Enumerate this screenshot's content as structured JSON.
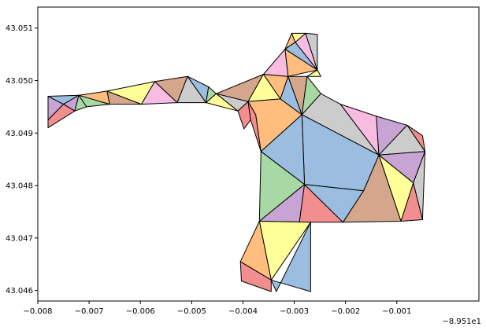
{
  "chart_data": {
    "type": "polygon-map",
    "xlim": [
      -89.518,
      -89.5094
    ],
    "ylim": [
      43.0458,
      43.0514
    ],
    "x_offset_label": "−8.951e1",
    "x_ticks": [
      {
        "value": -89.518,
        "label": "−0.008"
      },
      {
        "value": -89.517,
        "label": "−0.007"
      },
      {
        "value": -89.516,
        "label": "−0.006"
      },
      {
        "value": -89.515,
        "label": "−0.005"
      },
      {
        "value": -89.514,
        "label": "−0.004"
      },
      {
        "value": -89.513,
        "label": "−0.003"
      },
      {
        "value": -89.512,
        "label": "−0.002"
      },
      {
        "value": -89.511,
        "label": "−0.001"
      }
    ],
    "y_ticks": [
      {
        "value": 43.046,
        "label": "43.046"
      },
      {
        "value": 43.047,
        "label": "43.047"
      },
      {
        "value": 43.048,
        "label": "43.048"
      },
      {
        "value": 43.049,
        "label": "43.049"
      },
      {
        "value": 43.05,
        "label": "43.050"
      },
      {
        "value": 43.051,
        "label": "43.051"
      }
    ],
    "palette": {
      "red": "#f28e8e",
      "blue": "#9bbddf",
      "green": "#a8d8a3",
      "purple": "#c8a4d4",
      "orange": "#ffbe7d",
      "yellow": "#ffff99",
      "brown": "#d4a78d",
      "pink": "#f7bde0",
      "gray": "#cccccc"
    },
    "polygons": [
      {
        "fill": "purple",
        "points": [
          [
            -89.5178,
            43.0497
          ],
          [
            -89.5175,
            43.04955
          ],
          [
            -89.5178,
            43.04925
          ]
        ]
      },
      {
        "fill": "blue",
        "points": [
          [
            -89.5178,
            43.0497
          ],
          [
            -89.5172,
            43.04972
          ],
          [
            -89.5175,
            43.04955
          ]
        ]
      },
      {
        "fill": "purple",
        "points": [
          [
            -89.5175,
            43.04955
          ],
          [
            -89.5172,
            43.04972
          ],
          [
            -89.51728,
            43.04942
          ]
        ]
      },
      {
        "fill": "red",
        "points": [
          [
            -89.5178,
            43.04925
          ],
          [
            -89.5175,
            43.04955
          ],
          [
            -89.51728,
            43.04942
          ],
          [
            -89.5178,
            43.0491
          ]
        ]
      },
      {
        "fill": "green",
        "points": [
          [
            -89.5172,
            43.04972
          ],
          [
            -89.51705,
            43.0495
          ],
          [
            -89.51728,
            43.04942
          ]
        ]
      },
      {
        "fill": "green",
        "points": [
          [
            -89.5172,
            43.04972
          ],
          [
            -89.5166,
            43.04955
          ],
          [
            -89.51705,
            43.0495
          ]
        ]
      },
      {
        "fill": "orange",
        "points": [
          [
            -89.5172,
            43.04972
          ],
          [
            -89.51665,
            43.0498
          ],
          [
            -89.5166,
            43.04955
          ]
        ]
      },
      {
        "fill": "brown",
        "points": [
          [
            -89.51665,
            43.0498
          ],
          [
            -89.51598,
            43.04955
          ],
          [
            -89.5166,
            43.04955
          ]
        ]
      },
      {
        "fill": "yellow",
        "points": [
          [
            -89.51665,
            43.0498
          ],
          [
            -89.51572,
            43.04998
          ],
          [
            -89.51598,
            43.04955
          ]
        ]
      },
      {
        "fill": "pink",
        "points": [
          [
            -89.51572,
            43.04998
          ],
          [
            -89.51528,
            43.04958
          ],
          [
            -89.51598,
            43.04955
          ]
        ]
      },
      {
        "fill": "brown",
        "points": [
          [
            -89.51572,
            43.04998
          ],
          [
            -89.51508,
            43.05008
          ],
          [
            -89.51528,
            43.04958
          ]
        ]
      },
      {
        "fill": "gray",
        "points": [
          [
            -89.51508,
            43.05008
          ],
          [
            -89.51472,
            43.04958
          ],
          [
            -89.51528,
            43.04958
          ]
        ]
      },
      {
        "fill": "blue",
        "points": [
          [
            -89.51508,
            43.05008
          ],
          [
            -89.51467,
            43.04988
          ],
          [
            -89.51472,
            43.04958
          ]
        ]
      },
      {
        "fill": "green",
        "points": [
          [
            -89.51467,
            43.04988
          ],
          [
            -89.51452,
            43.04975
          ],
          [
            -89.51472,
            43.04958
          ]
        ]
      },
      {
        "fill": "yellow",
        "points": [
          [
            -89.51452,
            43.04975
          ],
          [
            -89.5141,
            43.04942
          ],
          [
            -89.51472,
            43.04958
          ]
        ]
      },
      {
        "fill": "gray",
        "points": [
          [
            -89.51452,
            43.04975
          ],
          [
            -89.5139,
            43.0496
          ],
          [
            -89.5141,
            43.04942
          ]
        ]
      },
      {
        "fill": "brown",
        "points": [
          [
            -89.51452,
            43.04975
          ],
          [
            -89.5136,
            43.05012
          ],
          [
            -89.5139,
            43.0496
          ]
        ]
      },
      {
        "fill": "red",
        "points": [
          [
            -89.5141,
            43.04942
          ],
          [
            -89.5139,
            43.0496
          ],
          [
            -89.51385,
            43.04925
          ],
          [
            -89.51398,
            43.04908
          ]
        ]
      },
      {
        "fill": "red",
        "points": [
          [
            -89.5139,
            43.0496
          ],
          [
            -89.51375,
            43.04935
          ],
          [
            -89.51365,
            43.04865
          ],
          [
            -89.51385,
            43.04925
          ]
        ]
      },
      {
        "fill": "yellow",
        "points": [
          [
            -89.5136,
            43.05012
          ],
          [
            -89.51327,
            43.04965
          ],
          [
            -89.5139,
            43.0496
          ]
        ]
      },
      {
        "fill": "orange",
        "points": [
          [
            -89.5139,
            43.0496
          ],
          [
            -89.51327,
            43.04965
          ],
          [
            -89.51285,
            43.04935
          ],
          [
            -89.51365,
            43.04865
          ],
          [
            -89.51375,
            43.04935
          ]
        ]
      },
      {
        "fill": "orange",
        "points": [
          [
            -89.5136,
            43.05012
          ],
          [
            -89.51312,
            43.05008
          ],
          [
            -89.51327,
            43.04965
          ]
        ]
      },
      {
        "fill": "blue",
        "points": [
          [
            -89.51312,
            43.05008
          ],
          [
            -89.51285,
            43.04935
          ],
          [
            -89.51327,
            43.04965
          ]
        ]
      },
      {
        "fill": "pink",
        "points": [
          [
            -89.5136,
            43.05012
          ],
          [
            -89.51318,
            43.0506
          ],
          [
            -89.51312,
            43.05008
          ]
        ]
      },
      {
        "fill": "brown",
        "points": [
          [
            -89.51312,
            43.05008
          ],
          [
            -89.51275,
            43.05008
          ],
          [
            -89.51285,
            43.04935
          ]
        ]
      },
      {
        "fill": "green",
        "points": [
          [
            -89.51275,
            43.05008
          ],
          [
            -89.51248,
            43.04975
          ],
          [
            -89.51285,
            43.04935
          ]
        ]
      },
      {
        "fill": "orange",
        "points": [
          [
            -89.51318,
            43.0506
          ],
          [
            -89.51255,
            43.0502
          ],
          [
            -89.51312,
            43.05008
          ]
        ]
      },
      {
        "fill": "yellow",
        "points": [
          [
            -89.51255,
            43.0502
          ],
          [
            -89.51248,
            43.05008
          ],
          [
            -89.51275,
            43.05008
          ]
        ]
      },
      {
        "fill": "blue",
        "points": [
          [
            -89.51318,
            43.0506
          ],
          [
            -89.51298,
            43.05073
          ],
          [
            -89.51255,
            43.0502
          ]
        ]
      },
      {
        "fill": "orange",
        "points": [
          [
            -89.51318,
            43.0506
          ],
          [
            -89.51305,
            43.0509
          ],
          [
            -89.51298,
            43.05073
          ]
        ]
      },
      {
        "fill": "pink",
        "points": [
          [
            -89.51298,
            43.05073
          ],
          [
            -89.51278,
            43.0509
          ],
          [
            -89.51255,
            43.0502
          ]
        ]
      },
      {
        "fill": "yellow",
        "points": [
          [
            -89.51305,
            43.0509
          ],
          [
            -89.51278,
            43.0509
          ],
          [
            -89.51298,
            43.05073
          ]
        ]
      },
      {
        "fill": "gray",
        "points": [
          [
            -89.51278,
            43.0509
          ],
          [
            -89.51255,
            43.05088
          ],
          [
            -89.51255,
            43.0502
          ]
        ]
      },
      {
        "fill": "gray",
        "points": [
          [
            -89.51285,
            43.04935
          ],
          [
            -89.51248,
            43.04975
          ],
          [
            -89.5121,
            43.04955
          ],
          [
            -89.51135,
            43.04858
          ]
        ]
      },
      {
        "fill": "pink",
        "points": [
          [
            -89.5121,
            43.04955
          ],
          [
            -89.5114,
            43.04932
          ],
          [
            -89.51135,
            43.04858
          ]
        ]
      },
      {
        "fill": "purple",
        "points": [
          [
            -89.5114,
            43.04932
          ],
          [
            -89.5108,
            43.04915
          ],
          [
            -89.51135,
            43.04858
          ]
        ]
      },
      {
        "fill": "red",
        "points": [
          [
            -89.5108,
            43.04915
          ],
          [
            -89.5105,
            43.04895
          ],
          [
            -89.51045,
            43.04865
          ]
        ]
      },
      {
        "fill": "gray",
        "points": [
          [
            -89.5108,
            43.04915
          ],
          [
            -89.51045,
            43.04865
          ],
          [
            -89.51135,
            43.04858
          ]
        ]
      },
      {
        "fill": "purple",
        "points": [
          [
            -89.51135,
            43.04858
          ],
          [
            -89.51045,
            43.04865
          ],
          [
            -89.51068,
            43.04805
          ]
        ]
      },
      {
        "fill": "gray",
        "points": [
          [
            -89.51045,
            43.04865
          ],
          [
            -89.5105,
            43.04735
          ],
          [
            -89.51068,
            43.04805
          ]
        ]
      },
      {
        "fill": "red",
        "points": [
          [
            -89.51068,
            43.04805
          ],
          [
            -89.5105,
            43.04735
          ],
          [
            -89.51092,
            43.04732
          ]
        ]
      },
      {
        "fill": "yellow",
        "points": [
          [
            -89.51135,
            43.04858
          ],
          [
            -89.51068,
            43.04805
          ],
          [
            -89.51092,
            43.04732
          ]
        ]
      },
      {
        "fill": "brown",
        "points": [
          [
            -89.51135,
            43.04858
          ],
          [
            -89.51092,
            43.04732
          ],
          [
            -89.51205,
            43.0473
          ],
          [
            -89.51165,
            43.0479
          ]
        ]
      },
      {
        "fill": "blue",
        "points": [
          [
            -89.51285,
            43.04935
          ],
          [
            -89.51135,
            43.04858
          ],
          [
            -89.51165,
            43.0479
          ],
          [
            -89.5128,
            43.04802
          ]
        ]
      },
      {
        "fill": "blue",
        "points": [
          [
            -89.51365,
            43.04865
          ],
          [
            -89.51285,
            43.04935
          ],
          [
            -89.5128,
            43.04802
          ]
        ]
      },
      {
        "fill": "green",
        "points": [
          [
            -89.51365,
            43.04865
          ],
          [
            -89.5128,
            43.04802
          ],
          [
            -89.51368,
            43.04732
          ]
        ]
      },
      {
        "fill": "purple",
        "points": [
          [
            -89.5128,
            43.04802
          ],
          [
            -89.51268,
            43.0473
          ],
          [
            -89.51368,
            43.04732
          ]
        ]
      },
      {
        "fill": "green",
        "points": [
          [
            -89.5128,
            43.04802
          ],
          [
            -89.51268,
            43.0473
          ],
          [
            -89.5129,
            43.0473
          ]
        ]
      },
      {
        "fill": "red",
        "points": [
          [
            -89.5128,
            43.04802
          ],
          [
            -89.51205,
            43.0473
          ],
          [
            -89.5129,
            43.0473
          ]
        ]
      },
      {
        "fill": "blue",
        "points": [
          [
            -89.5128,
            43.04802
          ],
          [
            -89.51165,
            43.0479
          ],
          [
            -89.51205,
            43.0473
          ]
        ]
      },
      {
        "fill": "yellow",
        "points": [
          [
            -89.51368,
            43.04732
          ],
          [
            -89.51268,
            43.0473
          ],
          [
            -89.51345,
            43.0462
          ]
        ]
      },
      {
        "fill": "blue",
        "points": [
          [
            -89.51268,
            43.0473
          ],
          [
            -89.51268,
            43.04598
          ],
          [
            -89.51345,
            43.0462
          ],
          [
            -89.51335,
            43.04598
          ]
        ]
      },
      {
        "fill": "orange",
        "points": [
          [
            -89.51368,
            43.04732
          ],
          [
            -89.51345,
            43.0462
          ],
          [
            -89.51405,
            43.04655
          ]
        ]
      },
      {
        "fill": "red",
        "points": [
          [
            -89.51405,
            43.04655
          ],
          [
            -89.51345,
            43.0462
          ],
          [
            -89.51345,
            43.04598
          ],
          [
            -89.51403,
            43.04618
          ]
        ]
      }
    ]
  }
}
